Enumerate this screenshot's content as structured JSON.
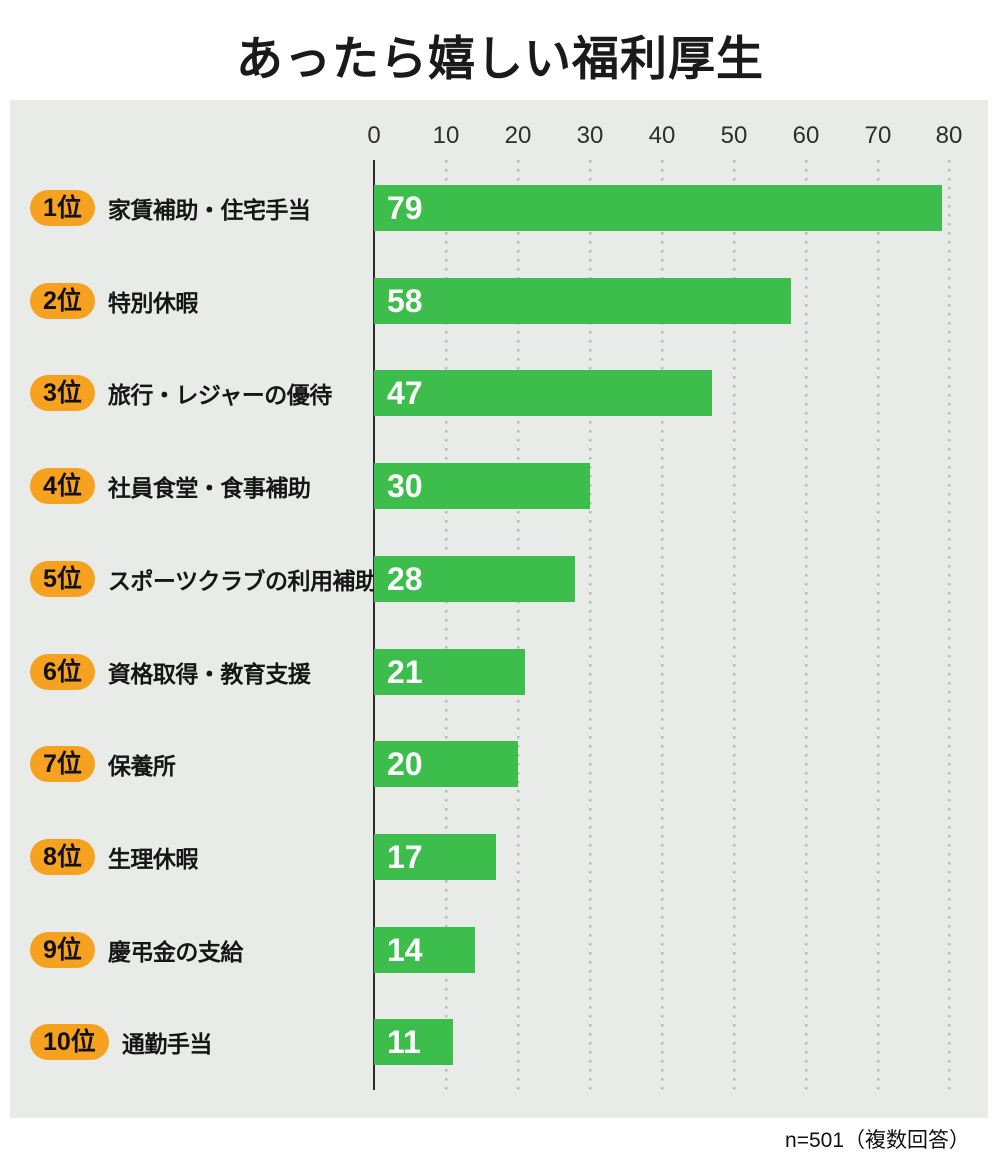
{
  "title": "あったら嬉しい福利厚生",
  "footer_note": "n=501（複数回答）",
  "colors": {
    "bar_green": "#3dbe4c",
    "badge_orange": "#f6a11f",
    "panel_background": "#e8ebe8"
  },
  "chart_data": {
    "type": "bar",
    "orientation": "horizontal",
    "title": "あったら嬉しい福利厚生",
    "note": "n=501（複数回答）",
    "xlim": [
      0,
      80
    ],
    "grid": "dotted-vertical",
    "ticks": [
      "0",
      "10",
      "20",
      "30",
      "40",
      "50",
      "60",
      "70",
      "80"
    ],
    "items": [
      {
        "rank": "1位",
        "label": "家賃補助・住宅手当",
        "value": 79
      },
      {
        "rank": "2位",
        "label": "特別休暇",
        "value": 58
      },
      {
        "rank": "3位",
        "label": "旅行・レジャーの優待",
        "value": 47
      },
      {
        "rank": "4位",
        "label": "社員食堂・食事補助",
        "value": 30
      },
      {
        "rank": "5位",
        "label": "スポーツクラブの利用補助",
        "value": 28
      },
      {
        "rank": "6位",
        "label": "資格取得・教育支援",
        "value": 21
      },
      {
        "rank": "7位",
        "label": "保養所",
        "value": 20
      },
      {
        "rank": "8位",
        "label": "生理休暇",
        "value": 17
      },
      {
        "rank": "9位",
        "label": "慶弔金の支給",
        "value": 14
      },
      {
        "rank": "10位",
        "label": "通勤手当",
        "value": 11
      }
    ]
  }
}
